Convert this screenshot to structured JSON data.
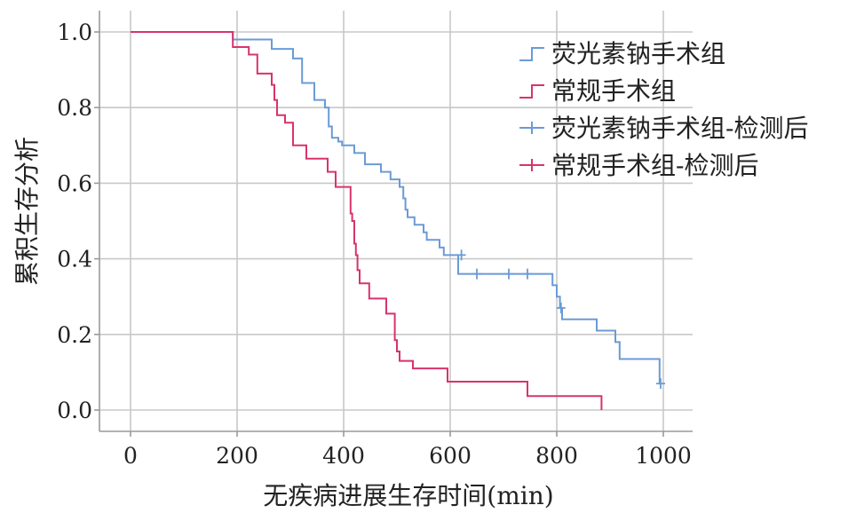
{
  "chart_data": {
    "type": "line",
    "subtype": "kaplan-meier",
    "xlabel": "无疾病进展生存时间(min)",
    "ylabel": "累积生存分析",
    "xlim": [
      0,
      1000
    ],
    "ylim": [
      0,
      1.0
    ],
    "xticks": [
      0,
      200,
      400,
      600,
      800,
      1000
    ],
    "yticks": [
      0.0,
      0.2,
      0.4,
      0.6,
      0.8,
      1.0
    ],
    "xtick_labels": [
      "0",
      "200",
      "400",
      "600",
      "800",
      "1000"
    ],
    "ytick_labels": [
      "0.0",
      "0.2",
      "0.4",
      "0.6",
      "0.8",
      "1.0"
    ],
    "grid": true,
    "legend_position": "top-right",
    "legend": [
      {
        "label": "荧光素钠手术组",
        "kind": "step",
        "color": "#6b9bd6"
      },
      {
        "label": "常规手术组",
        "kind": "step",
        "color": "#d8336e"
      },
      {
        "label": "荧光素钠手术组-检测后",
        "kind": "censor",
        "color": "#6b9bd6"
      },
      {
        "label": "常规手术组-检测后",
        "kind": "censor",
        "color": "#d8336e"
      }
    ],
    "series": [
      {
        "name": "荧光素钠手术组",
        "color": "#6b9bd6",
        "steps": [
          [
            0,
            1.0
          ],
          [
            192,
            0.98
          ],
          [
            250,
            0.98
          ],
          [
            265,
            0.955
          ],
          [
            300,
            0.955
          ],
          [
            305,
            0.93
          ],
          [
            315,
            0.93
          ],
          [
            322,
            0.865
          ],
          [
            330,
            0.865
          ],
          [
            345,
            0.82
          ],
          [
            355,
            0.82
          ],
          [
            365,
            0.8
          ],
          [
            372,
            0.75
          ],
          [
            378,
            0.72
          ],
          [
            385,
            0.72
          ],
          [
            390,
            0.71
          ],
          [
            397,
            0.7
          ],
          [
            420,
            0.68
          ],
          [
            430,
            0.68
          ],
          [
            440,
            0.65
          ],
          [
            458,
            0.65
          ],
          [
            470,
            0.63
          ],
          [
            480,
            0.63
          ],
          [
            488,
            0.61
          ],
          [
            498,
            0.61
          ],
          [
            505,
            0.59
          ],
          [
            512,
            0.56
          ],
          [
            516,
            0.53
          ],
          [
            520,
            0.51
          ],
          [
            527,
            0.51
          ],
          [
            533,
            0.49
          ],
          [
            550,
            0.47
          ],
          [
            556,
            0.45
          ],
          [
            570,
            0.45
          ],
          [
            580,
            0.43
          ],
          [
            588,
            0.41
          ],
          [
            610,
            0.41
          ],
          [
            615,
            0.36
          ],
          [
            720,
            0.36
          ],
          [
            740,
            0.36
          ],
          [
            780,
            0.36
          ],
          [
            792,
            0.33
          ],
          [
            800,
            0.3
          ],
          [
            806,
            0.27
          ],
          [
            810,
            0.24
          ],
          [
            870,
            0.24
          ],
          [
            875,
            0.21
          ],
          [
            900,
            0.21
          ],
          [
            910,
            0.18
          ],
          [
            918,
            0.135
          ],
          [
            990,
            0.135
          ],
          [
            993,
            0.07
          ],
          [
            995,
            0.07
          ]
        ],
        "censors": [
          [
            621,
            0.41
          ],
          [
            650,
            0.36
          ],
          [
            710,
            0.36
          ],
          [
            745,
            0.36
          ],
          [
            808,
            0.27
          ],
          [
            995,
            0.07
          ]
        ]
      },
      {
        "name": "常规手术组",
        "color": "#d8336e",
        "steps": [
          [
            0,
            1.0
          ],
          [
            192,
            0.96
          ],
          [
            215,
            0.96
          ],
          [
            222,
            0.94
          ],
          [
            232,
            0.94
          ],
          [
            238,
            0.89
          ],
          [
            262,
            0.89
          ],
          [
            265,
            0.86
          ],
          [
            270,
            0.82
          ],
          [
            275,
            0.78
          ],
          [
            285,
            0.78
          ],
          [
            290,
            0.76
          ],
          [
            300,
            0.76
          ],
          [
            305,
            0.7
          ],
          [
            325,
            0.7
          ],
          [
            330,
            0.665
          ],
          [
            365,
            0.665
          ],
          [
            370,
            0.63
          ],
          [
            380,
            0.63
          ],
          [
            385,
            0.59
          ],
          [
            410,
            0.59
          ],
          [
            413,
            0.52
          ],
          [
            416,
            0.5
          ],
          [
            420,
            0.44
          ],
          [
            423,
            0.41
          ],
          [
            426,
            0.37
          ],
          [
            430,
            0.335
          ],
          [
            443,
            0.335
          ],
          [
            448,
            0.295
          ],
          [
            475,
            0.295
          ],
          [
            480,
            0.255
          ],
          [
            493,
            0.255
          ],
          [
            496,
            0.185
          ],
          [
            500,
            0.155
          ],
          [
            505,
            0.13
          ],
          [
            525,
            0.13
          ],
          [
            530,
            0.11
          ],
          [
            590,
            0.11
          ],
          [
            595,
            0.075
          ],
          [
            740,
            0.075
          ],
          [
            745,
            0.037
          ],
          [
            882,
            0.037
          ],
          [
            884,
            0.0
          ]
        ],
        "censors": []
      }
    ]
  }
}
